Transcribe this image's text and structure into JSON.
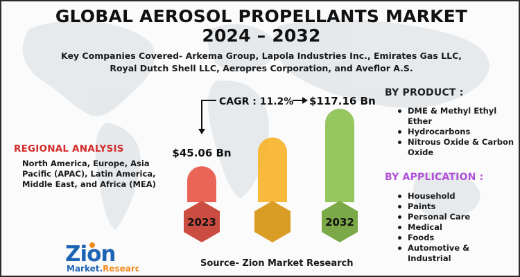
{
  "title_line1": "GLOBAL AEROSOL PROPELLANTS MARKET",
  "title_line2": "2024 – 2032",
  "subtitle": "Key Companies Covered- Arkema Group, Lapola Industries Inc., Emirates Gas LLC, Royal Dutch Shell LLC, Aeropres Corporation, and Aveflor A.S.",
  "regional": {
    "heading": "REGIONAL ANALYSIS",
    "body": "North America, Europe, Asia Pacific (APAC), Latin America, Middle East, and Africa (MEA)"
  },
  "by_product": {
    "heading": "BY PRODUCT :",
    "items": [
      "DME & Methyl Ethyl Ether",
      "Hydrocarbons",
      "Nitrous Oxide & Carbon Oxide"
    ]
  },
  "by_application": {
    "heading": "BY APPLICATION :",
    "items": [
      "Household",
      "Paints",
      "Personal Care",
      "Medical",
      "Foods",
      "Automotive & Industrial"
    ]
  },
  "source": "Source- Zion Market Research",
  "logo": {
    "main": "Zion",
    "sub": "Market.Research"
  },
  "colors": {
    "bar_2023": "#e8584a",
    "bar_mid": "#f7b32b",
    "bar_2032": "#8cc152",
    "regional_heading": "#d42a2a",
    "application_heading": "#b050d8",
    "logo_blue": "#1e64b4",
    "logo_orange": "#f28a1e"
  },
  "chart_data": {
    "type": "bar",
    "categories": [
      "2023",
      "",
      "2032"
    ],
    "values": [
      45.06,
      81.11,
      117.16
    ],
    "data_labels": [
      "$45.06 Bn",
      "",
      "$117.16 Bn"
    ],
    "cagr_label": "CAGR : 11.2%",
    "unit": "USD Billion"
  }
}
